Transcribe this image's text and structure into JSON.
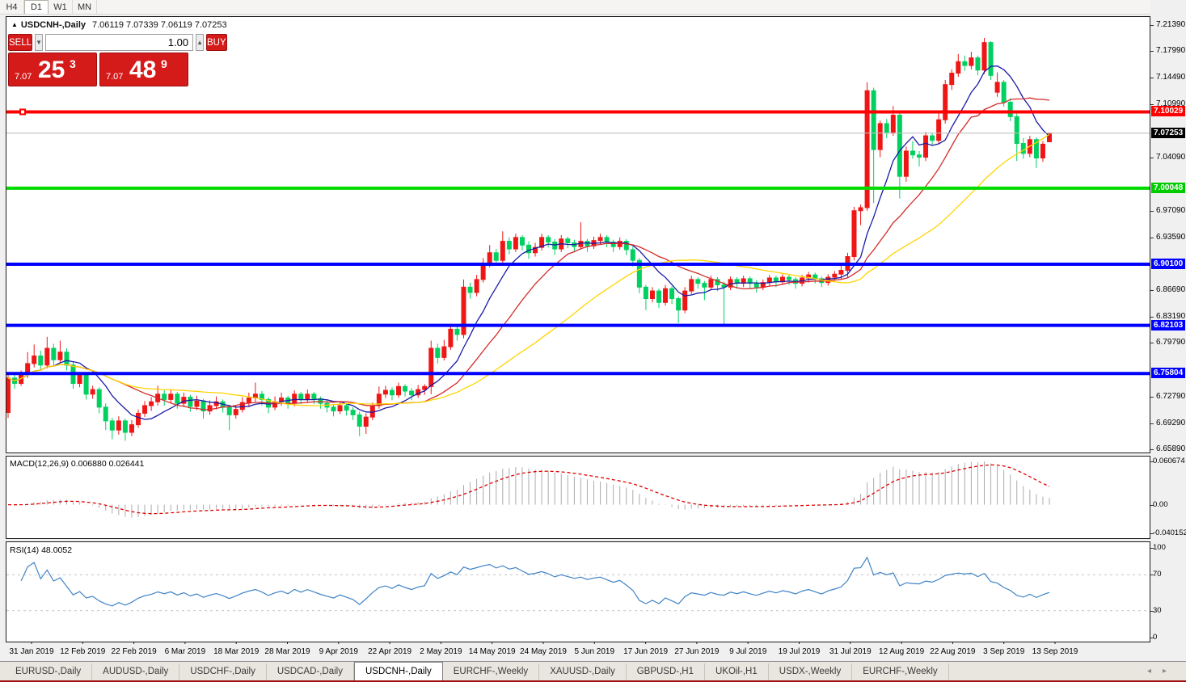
{
  "toolbar": {
    "timeframes": [
      {
        "label": "H4",
        "active": false
      },
      {
        "label": "D1",
        "active": true
      },
      {
        "label": "W1",
        "active": false
      },
      {
        "label": "MN",
        "active": false
      }
    ]
  },
  "chart": {
    "title_symbol": "USDCNH-,Daily",
    "title_ohlc": "7.06119 7.07339 7.06119 7.07253",
    "trade_panel": {
      "sell_label": "SELL",
      "buy_label": "BUY",
      "volume": "1.00",
      "sell_price_small": "7.07",
      "sell_price_big": "25",
      "sell_price_sup": "3",
      "buy_price_small": "7.07",
      "buy_price_big": "48",
      "buy_price_sup": "9"
    },
    "colors": {
      "candle_up": "#ef1616",
      "candle_down": "#00d060",
      "current_price_line": "#c6c6c6"
    },
    "price_axis_ticks": [
      "7.21390",
      "7.17990",
      "7.14490",
      "7.10990",
      "7.04090",
      "6.97090",
      "6.93590",
      "6.86690",
      "6.83190",
      "6.79790",
      "6.72790",
      "6.69290",
      "6.65890"
    ],
    "price_tags": [
      {
        "label": "7.10029",
        "bg": "#ff0000"
      },
      {
        "label": "7.07253",
        "bg": "#000000"
      },
      {
        "label": "7.00048",
        "bg": "#00cc00"
      },
      {
        "label": "6.90100",
        "bg": "#0000ff"
      },
      {
        "label": "6.82103",
        "bg": "#0000ff"
      },
      {
        "label": "6.75804",
        "bg": "#0000ff"
      }
    ],
    "hlines": [
      {
        "price": 7.10029,
        "color": "#ff0000",
        "width": 4,
        "handle": true
      },
      {
        "price": 7.07253,
        "color": "#c6c6c6",
        "width": 1,
        "handle": false
      },
      {
        "price": 7.00048,
        "color": "#00dc00",
        "width": 4,
        "handle": false
      },
      {
        "price": 6.901,
        "color": "#0000ff",
        "width": 4,
        "handle": false
      },
      {
        "price": 6.82103,
        "color": "#0000ff",
        "width": 4,
        "handle": false
      },
      {
        "price": 6.75804,
        "color": "#0000ff",
        "width": 4,
        "handle": false
      }
    ],
    "date_labels": [
      "31 Jan 2019",
      "12 Feb 2019",
      "22 Feb 2019",
      "6 Mar 2019",
      "18 Mar 2019",
      "28 Mar 2019",
      "9 Apr 2019",
      "22 Apr 2019",
      "2 May 2019",
      "14 May 2019",
      "24 May 2019",
      "5 Jun 2019",
      "17 Jun 2019",
      "27 Jun 2019",
      "9 Jul 2019",
      "19 Jul 2019",
      "31 Jul 2019",
      "12 Aug 2019",
      "22 Aug 2019",
      "3 Sep 2019",
      "13 Sep 2019"
    ],
    "moving_averages": [
      {
        "period": 8,
        "color": "#1a1aa6"
      },
      {
        "period": 17,
        "color": "#d42a2a"
      },
      {
        "period": 34,
        "color": "#ffd400"
      }
    ],
    "candles": [
      [
        6.707,
        6.758,
        6.7,
        6.752
      ],
      [
        6.752,
        6.76,
        6.738,
        6.745
      ],
      [
        6.745,
        6.762,
        6.742,
        6.757
      ],
      [
        6.757,
        6.786,
        6.752,
        6.771
      ],
      [
        6.771,
        6.796,
        6.766,
        6.781
      ],
      [
        6.781,
        6.788,
        6.762,
        6.769
      ],
      [
        6.769,
        6.806,
        6.765,
        6.791
      ],
      [
        6.791,
        6.797,
        6.768,
        6.776
      ],
      [
        6.776,
        6.801,
        6.772,
        6.786
      ],
      [
        6.786,
        6.791,
        6.762,
        6.769
      ],
      [
        6.769,
        6.774,
        6.738,
        6.745
      ],
      [
        6.745,
        6.76,
        6.74,
        6.756
      ],
      [
        6.756,
        6.759,
        6.724,
        6.731
      ],
      [
        6.731,
        6.742,
        6.725,
        6.737
      ],
      [
        6.737,
        6.74,
        6.706,
        6.714
      ],
      [
        6.714,
        6.719,
        6.684,
        6.696
      ],
      [
        6.696,
        6.7,
        6.672,
        6.684
      ],
      [
        6.684,
        6.702,
        6.678,
        6.696
      ],
      [
        6.696,
        6.699,
        6.67,
        6.681
      ],
      [
        6.681,
        6.697,
        6.676,
        6.691
      ],
      [
        6.691,
        6.711,
        6.687,
        6.706
      ],
      [
        6.706,
        6.722,
        6.701,
        6.716
      ],
      [
        6.716,
        6.727,
        6.709,
        6.721
      ],
      [
        6.721,
        6.742,
        6.716,
        6.731
      ],
      [
        6.731,
        6.736,
        6.716,
        6.724
      ],
      [
        6.724,
        6.737,
        6.719,
        6.731
      ],
      [
        6.731,
        6.734,
        6.712,
        6.719
      ],
      [
        6.719,
        6.733,
        6.714,
        6.727
      ],
      [
        6.727,
        6.73,
        6.708,
        6.715
      ],
      [
        6.715,
        6.729,
        6.71,
        6.722
      ],
      [
        6.722,
        6.725,
        6.699,
        6.709
      ],
      [
        6.709,
        6.723,
        6.704,
        6.716
      ],
      [
        6.716,
        6.728,
        6.711,
        6.721
      ],
      [
        6.721,
        6.724,
        6.707,
        6.714
      ],
      [
        6.714,
        6.717,
        6.684,
        6.704
      ],
      [
        6.704,
        6.717,
        6.699,
        6.711
      ],
      [
        6.711,
        6.727,
        6.707,
        6.72
      ],
      [
        6.72,
        6.733,
        6.714,
        6.726
      ],
      [
        6.726,
        6.746,
        6.721,
        6.731
      ],
      [
        6.731,
        6.735,
        6.716,
        6.724
      ],
      [
        6.724,
        6.727,
        6.706,
        6.714
      ],
      [
        6.714,
        6.728,
        6.71,
        6.721
      ],
      [
        6.721,
        6.733,
        6.716,
        6.726
      ],
      [
        6.726,
        6.729,
        6.712,
        6.719
      ],
      [
        6.719,
        6.736,
        6.715,
        6.731
      ],
      [
        6.731,
        6.734,
        6.718,
        6.724
      ],
      [
        6.724,
        6.737,
        6.72,
        6.731
      ],
      [
        6.731,
        6.734,
        6.718,
        6.725
      ],
      [
        6.725,
        6.728,
        6.712,
        6.719
      ],
      [
        6.719,
        6.723,
        6.707,
        6.714
      ],
      [
        6.714,
        6.718,
        6.702,
        6.709
      ],
      [
        6.709,
        6.722,
        6.705,
        6.716
      ],
      [
        6.716,
        6.719,
        6.703,
        6.71
      ],
      [
        6.71,
        6.714,
        6.697,
        6.704
      ],
      [
        6.704,
        6.708,
        6.676,
        6.689
      ],
      [
        6.689,
        6.706,
        6.679,
        6.701
      ],
      [
        6.701,
        6.72,
        6.697,
        6.716
      ],
      [
        6.716,
        6.741,
        6.712,
        6.731
      ],
      [
        6.731,
        6.742,
        6.726,
        6.736
      ],
      [
        6.736,
        6.74,
        6.723,
        6.73
      ],
      [
        6.73,
        6.746,
        6.726,
        6.741
      ],
      [
        6.741,
        6.744,
        6.728,
        6.735
      ],
      [
        6.735,
        6.739,
        6.723,
        6.73
      ],
      [
        6.73,
        6.743,
        6.726,
        6.737
      ],
      [
        6.737,
        6.744,
        6.73,
        6.741
      ],
      [
        6.741,
        6.801,
        6.731,
        6.791
      ],
      [
        6.791,
        6.797,
        6.771,
        6.779
      ],
      [
        6.779,
        6.802,
        6.775,
        6.793
      ],
      [
        6.793,
        6.822,
        6.789,
        6.816
      ],
      [
        6.816,
        6.821,
        6.801,
        6.809
      ],
      [
        6.809,
        6.881,
        6.804,
        6.871
      ],
      [
        6.871,
        6.877,
        6.856,
        6.864
      ],
      [
        6.864,
        6.887,
        6.859,
        6.881
      ],
      [
        6.881,
        6.909,
        6.877,
        6.901
      ],
      [
        6.901,
        6.926,
        6.897,
        6.916
      ],
      [
        6.916,
        6.921,
        6.899,
        6.906
      ],
      [
        6.906,
        6.944,
        6.902,
        6.931
      ],
      [
        6.931,
        6.936,
        6.914,
        6.921
      ],
      [
        6.921,
        6.941,
        6.917,
        6.936
      ],
      [
        6.936,
        6.939,
        6.919,
        6.926
      ],
      [
        6.926,
        6.931,
        6.908,
        6.916
      ],
      [
        6.916,
        6.929,
        6.911,
        6.923
      ],
      [
        6.923,
        6.941,
        6.919,
        6.936
      ],
      [
        6.936,
        6.939,
        6.923,
        6.93
      ],
      [
        6.93,
        6.934,
        6.913,
        6.921
      ],
      [
        6.921,
        6.939,
        6.917,
        6.934
      ],
      [
        6.934,
        6.937,
        6.922,
        6.929
      ],
      [
        6.929,
        6.933,
        6.917,
        6.924
      ],
      [
        6.924,
        6.956,
        6.92,
        6.931
      ],
      [
        6.931,
        6.934,
        6.917,
        6.925
      ],
      [
        6.925,
        6.937,
        6.921,
        6.932
      ],
      [
        6.932,
        6.941,
        6.927,
        6.936
      ],
      [
        6.936,
        6.939,
        6.923,
        6.93
      ],
      [
        6.93,
        6.933,
        6.917,
        6.924
      ],
      [
        6.924,
        6.936,
        6.92,
        6.931
      ],
      [
        6.931,
        6.934,
        6.913,
        6.92
      ],
      [
        6.92,
        6.924,
        6.898,
        6.906
      ],
      [
        6.906,
        6.909,
        6.863,
        6.871
      ],
      [
        6.871,
        6.874,
        6.841,
        6.856
      ],
      [
        6.856,
        6.871,
        6.851,
        6.866
      ],
      [
        6.866,
        6.869,
        6.844,
        6.851
      ],
      [
        6.851,
        6.874,
        6.847,
        6.869
      ],
      [
        6.869,
        6.872,
        6.849,
        6.856
      ],
      [
        6.856,
        6.859,
        6.824,
        6.841
      ],
      [
        6.841,
        6.871,
        6.837,
        6.866
      ],
      [
        6.866,
        6.886,
        6.862,
        6.881
      ],
      [
        6.881,
        6.884,
        6.869,
        6.876
      ],
      [
        6.876,
        6.879,
        6.854,
        6.871
      ],
      [
        6.871,
        6.886,
        6.867,
        6.881
      ],
      [
        6.881,
        6.884,
        6.866,
        6.874
      ],
      [
        6.874,
        6.878,
        6.821,
        6.871
      ],
      [
        6.871,
        6.885,
        6.867,
        6.881
      ],
      [
        6.881,
        6.884,
        6.869,
        6.876
      ],
      [
        6.876,
        6.886,
        6.871,
        6.882
      ],
      [
        6.882,
        6.885,
        6.869,
        6.876
      ],
      [
        6.876,
        6.88,
        6.864,
        6.871
      ],
      [
        6.871,
        6.881,
        6.867,
        6.877
      ],
      [
        6.877,
        6.887,
        6.873,
        6.883
      ],
      [
        6.883,
        6.886,
        6.871,
        6.878
      ],
      [
        6.878,
        6.888,
        6.874,
        6.884
      ],
      [
        6.884,
        6.887,
        6.874,
        6.881
      ],
      [
        6.881,
        6.884,
        6.869,
        6.876
      ],
      [
        6.876,
        6.887,
        6.872,
        6.883
      ],
      [
        6.883,
        6.891,
        6.877,
        6.887
      ],
      [
        6.887,
        6.89,
        6.876,
        6.882
      ],
      [
        6.882,
        6.885,
        6.871,
        6.877
      ],
      [
        6.877,
        6.888,
        6.873,
        6.884
      ],
      [
        6.884,
        6.892,
        6.879,
        6.888
      ],
      [
        6.888,
        6.901,
        6.882,
        6.893
      ],
      [
        6.893,
        6.916,
        6.884,
        6.911
      ],
      [
        6.911,
        6.976,
        6.906,
        6.971
      ],
      [
        6.971,
        6.979,
        6.952,
        6.975
      ],
      [
        6.975,
        7.139,
        6.971,
        7.128
      ],
      [
        7.128,
        7.132,
        6.981,
        7.051
      ],
      [
        7.051,
        7.089,
        7.041,
        7.085
      ],
      [
        7.085,
        7.091,
        7.066,
        7.073
      ],
      [
        7.073,
        7.108,
        7.069,
        7.096
      ],
      [
        7.096,
        7.099,
        6.987,
        7.016
      ],
      [
        7.016,
        7.055,
        7.009,
        7.049
      ],
      [
        7.049,
        7.062,
        7.039,
        7.044
      ],
      [
        7.044,
        7.049,
        7.029,
        7.041
      ],
      [
        7.041,
        7.074,
        7.036,
        7.069
      ],
      [
        7.069,
        7.073,
        7.056,
        7.063
      ],
      [
        7.063,
        7.101,
        7.058,
        7.09
      ],
      [
        7.09,
        7.142,
        7.085,
        7.136
      ],
      [
        7.136,
        7.156,
        7.129,
        7.151
      ],
      [
        7.151,
        7.176,
        7.146,
        7.166
      ],
      [
        7.166,
        7.174,
        7.154,
        7.161
      ],
      [
        7.161,
        7.179,
        7.156,
        7.171
      ],
      [
        7.171,
        7.174,
        7.148,
        7.155
      ],
      [
        7.155,
        7.197,
        7.15,
        7.191
      ],
      [
        7.191,
        7.193,
        7.142,
        7.148
      ],
      [
        7.126,
        7.152,
        7.12,
        7.139
      ],
      [
        7.139,
        7.142,
        7.107,
        7.113
      ],
      [
        7.113,
        7.118,
        7.088,
        7.094
      ],
      [
        7.094,
        7.098,
        7.036,
        7.059
      ],
      [
        7.059,
        7.066,
        7.039,
        7.046
      ],
      [
        7.046,
        7.069,
        7.041,
        7.064
      ],
      [
        7.064,
        7.067,
        7.027,
        7.04
      ],
      [
        7.04,
        7.062,
        7.035,
        7.058
      ],
      [
        7.06119,
        7.07339,
        7.06119,
        7.07253
      ]
    ]
  },
  "macd_pane": {
    "label": "MACD(12,26,9) 0.006880 0.026441",
    "fast": 12,
    "slow": 26,
    "signal": 9,
    "histogram_color": "#ababab",
    "signal_color": "#e00000",
    "axis_labels": [
      "0.060674",
      "0.00",
      "-0.040152"
    ]
  },
  "rsi_pane": {
    "label": "RSI(14) 48.0052",
    "period": 14,
    "line_color": "#3f83c6",
    "axis_labels": [
      "100",
      "70",
      "30",
      "0"
    ],
    "guide_levels": [
      70,
      30
    ]
  },
  "tabs": {
    "items": [
      "EURUSD-,Daily",
      "AUDUSD-,Daily",
      "USDCHF-,Daily",
      "USDCAD-,Daily",
      "USDCNH-,Daily",
      "EURCHF-,Weekly",
      "XAUUSD-,Daily",
      "GBPUSD-,H1",
      "UKOil-,H1",
      "USDX-,Weekly",
      "EURCHF-,Weekly"
    ],
    "active_index": 4,
    "scroll_left_icon": "◂",
    "scroll_right_icon": "▸"
  }
}
